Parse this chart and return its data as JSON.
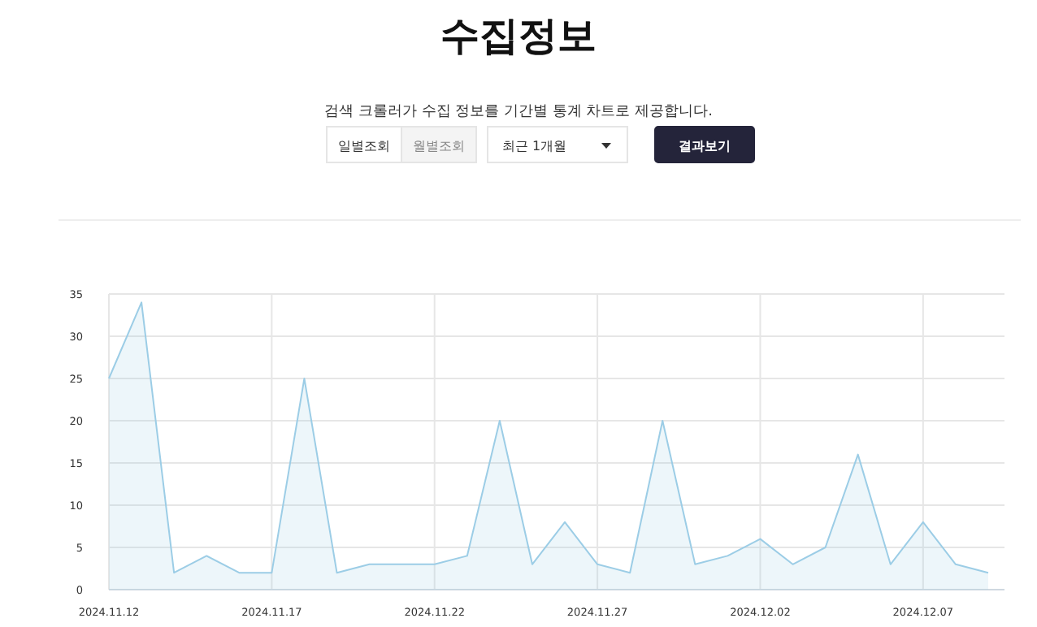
{
  "chart_data": {
    "type": "area",
    "title": "수집정보",
    "subtitle": "검색 크롤러가 수집 정보를 기간별 통계 차트로 제공합니다.",
    "annotations": [
      "일별조회",
      "월별조회",
      "최근 1개월",
      "결과보기"
    ],
    "x": [
      "2024-11-12",
      "2024-11-13",
      "2024-11-14",
      "2024-11-15",
      "2024-11-16",
      "2024-11-17",
      "2024-11-18",
      "2024-11-19",
      "2024-11-20",
      "2024-11-21",
      "2024-11-22",
      "2024-11-23",
      "2024-11-24",
      "2024-11-25",
      "2024-11-26",
      "2024-11-27",
      "2024-11-28",
      "2024-11-29",
      "2024-11-30",
      "2024-12-01",
      "2024-12-02",
      "2024-12-03",
      "2024-12-04",
      "2024-12-05",
      "2024-12-06",
      "2024-12-07",
      "2024-12-08",
      "2024-12-09"
    ],
    "values": [
      25,
      34,
      2,
      4,
      2,
      2,
      25,
      2,
      3,
      3,
      3,
      4,
      20,
      3,
      8,
      3,
      2,
      20,
      3,
      4,
      6,
      3,
      5,
      16,
      3,
      8,
      3,
      2
    ],
    "color": "#9ccde6",
    "xlim": [
      "2024-11-12",
      "2024-12-09T12:00"
    ],
    "xticks": [
      {
        "value": "2024-11-12",
        "label": "2024.11.12"
      },
      {
        "value": "2024-11-17",
        "label": "2024.11.17"
      },
      {
        "value": "2024-11-22",
        "label": "2024.11.22"
      },
      {
        "value": "2024-11-27",
        "label": "2024.11.27"
      },
      {
        "value": "2024-12-02",
        "label": "2024.12.02"
      },
      {
        "value": "2024-12-07",
        "label": "2024.12.07"
      }
    ],
    "ylim": [
      0,
      35
    ],
    "yticks": [
      0,
      5,
      10,
      15,
      20,
      25,
      30,
      35
    ],
    "grid": true,
    "marker": "none"
  }
}
